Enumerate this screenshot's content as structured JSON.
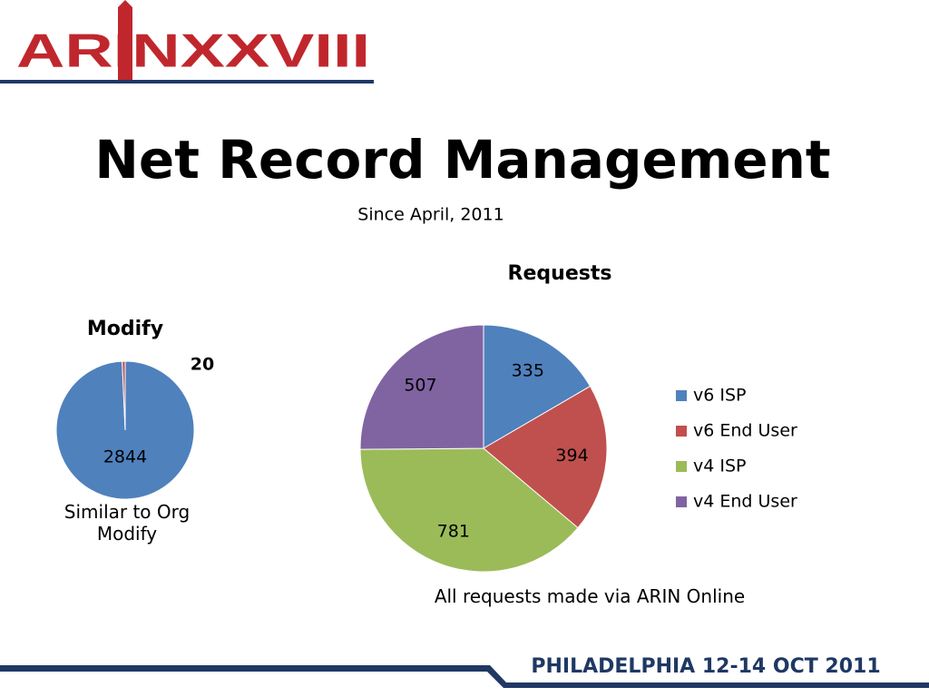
{
  "header": {
    "logo": "ARINXXVIII"
  },
  "title": "Net Record Management",
  "subtitle": "Since April, 2011",
  "footer": "PHILADELPHIA 12-14 OCT 2011",
  "chart_data": [
    {
      "type": "pie",
      "title": "Modify",
      "values": [
        2844,
        20
      ],
      "colors": [
        "#4f81bd",
        "#c0504d"
      ],
      "annotation": "Similar to Org Modify"
    },
    {
      "type": "pie",
      "title": "Requests",
      "categories": [
        "v6 ISP",
        "v6 End User",
        "v4 ISP",
        "v4 End User"
      ],
      "values": [
        335,
        394,
        781,
        507
      ],
      "colors": [
        "#4f81bd",
        "#c0504d",
        "#9bbb59",
        "#8064a2"
      ],
      "legend": "right",
      "annotation": "All requests made via ARIN Online"
    }
  ]
}
